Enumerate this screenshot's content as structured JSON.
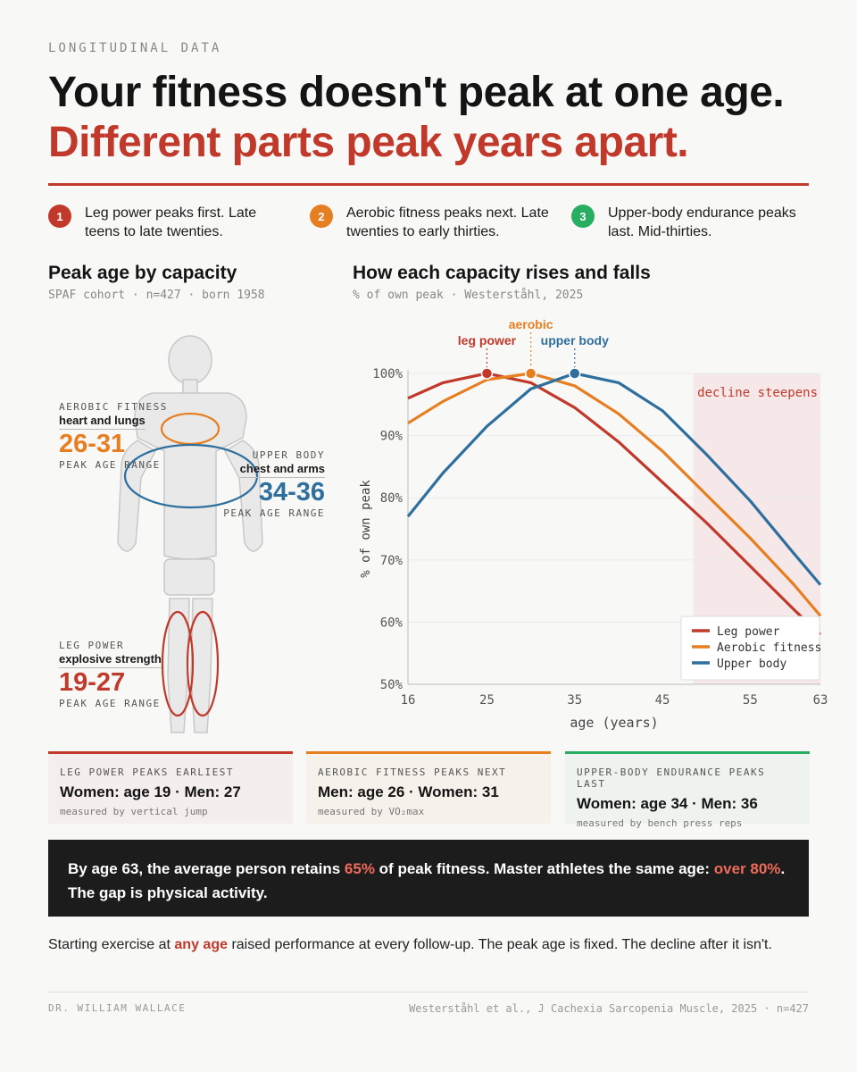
{
  "eyebrow": "LONGITUDINAL DATA",
  "headline": {
    "line1": "Your fitness doesn't peak at one age.",
    "line2": "Different parts peak years apart."
  },
  "points": [
    {
      "num": "1",
      "text": "Leg power peaks first. Late teens to late twenties.",
      "color": "#c0392b"
    },
    {
      "num": "2",
      "text": "Aerobic fitness peaks next. Late twenties to early thirties.",
      "color": "#e67e22"
    },
    {
      "num": "3",
      "text": "Upper-body endurance peaks last. Mid-thirties.",
      "color": "#27ae60"
    }
  ],
  "left_panel": {
    "title": "Peak age by capacity",
    "subtitle": "SPAF cohort · n=427 · born 1958",
    "capacities": [
      {
        "label": "AEROBIC FITNESS",
        "desc": "heart and lungs",
        "range": "26-31",
        "unit": "PEAK AGE RANGE",
        "color": "#e67e22"
      },
      {
        "label": "UPPER BODY",
        "desc": "chest and arms",
        "range": "34-36",
        "unit": "PEAK AGE RANGE",
        "color": "#2e6f9e"
      },
      {
        "label": "LEG POWER",
        "desc": "explosive strength",
        "range": "19-27",
        "unit": "PEAK AGE RANGE",
        "color": "#c0392b"
      }
    ]
  },
  "right_panel": {
    "title": "How each capacity rises and falls",
    "subtitle": "% of own peak · Westerståhl, 2025"
  },
  "chart_data": {
    "type": "line",
    "xlabel": "age (years)",
    "ylabel": "% of own peak",
    "xlim": [
      16,
      63
    ],
    "ylim": [
      50,
      100
    ],
    "x_ticks": [
      16,
      25,
      35,
      45,
      55,
      63
    ],
    "y_ticks": [
      50,
      60,
      70,
      80,
      90,
      100
    ],
    "y_tick_suffix": "%",
    "grid": "horizontal",
    "shaded_region": {
      "x_from": 48.5,
      "x_to": 63,
      "label": "decline steepens"
    },
    "peak_annotations": [
      {
        "series": "Leg power",
        "label": "leg power",
        "x": 25,
        "y": 100
      },
      {
        "series": "Aerobic fitness",
        "label": "aerobic",
        "x": 30,
        "y": 100
      },
      {
        "series": "Upper body",
        "label": "upper body",
        "x": 35,
        "y": 100
      }
    ],
    "legend_position": "bottom-right",
    "series": [
      {
        "name": "Leg power",
        "color": "#c0392b",
        "x": [
          16,
          20,
          25,
          30,
          35,
          40,
          45,
          50,
          55,
          60,
          63
        ],
        "y": [
          96,
          98.5,
          100,
          98.5,
          94.5,
          89,
          82.5,
          76,
          69,
          62,
          58
        ]
      },
      {
        "name": "Aerobic fitness",
        "color": "#e67e22",
        "x": [
          16,
          20,
          25,
          30,
          35,
          40,
          45,
          50,
          55,
          60,
          63
        ],
        "y": [
          92,
          95.5,
          99,
          100,
          98,
          93.5,
          87.5,
          80.5,
          73.5,
          66,
          61
        ]
      },
      {
        "name": "Upper body",
        "color": "#2e6f9e",
        "x": [
          16,
          20,
          25,
          30,
          35,
          40,
          45,
          50,
          55,
          60,
          63
        ],
        "y": [
          77,
          84,
          91.5,
          97.5,
          100,
          98.5,
          94,
          87,
          79.5,
          71,
          66
        ]
      }
    ]
  },
  "cards": [
    {
      "title": "LEG POWER PEAKS EARLIEST",
      "value": "Women: age 19 · Men: 27",
      "meta": "measured by vertical jump",
      "color": "#c0392b",
      "bg": "#f5eeee"
    },
    {
      "title": "AEROBIC FITNESS PEAKS NEXT",
      "value": "Men: age 26 · Women: 31",
      "meta": "measured by VO₂max",
      "color": "#e67e22",
      "bg": "#f6f1ea"
    },
    {
      "title": "UPPER-BODY ENDURANCE PEAKS LAST",
      "value": "Women: age 34 · Men: 36",
      "meta": "measured by bench press reps",
      "color": "#27ae60",
      "bg": "#eef3ef"
    }
  ],
  "callout": {
    "p1": "By age 63, the average person retains ",
    "h1": "65%",
    "p2": " of peak fitness. Master athletes the same age: ",
    "h2": "over 80%",
    "p3": ". The gap is physical activity."
  },
  "closing": {
    "p1": "Starting exercise at ",
    "h1": "any age",
    "p2": " raised performance at every follow-up. The peak age is fixed. The decline after it isn't."
  },
  "footer": {
    "left": "DR. WILLIAM WALLACE",
    "right": "Westerståhl et al., J Cachexia Sarcopenia Muscle, 2025 · n=427"
  }
}
